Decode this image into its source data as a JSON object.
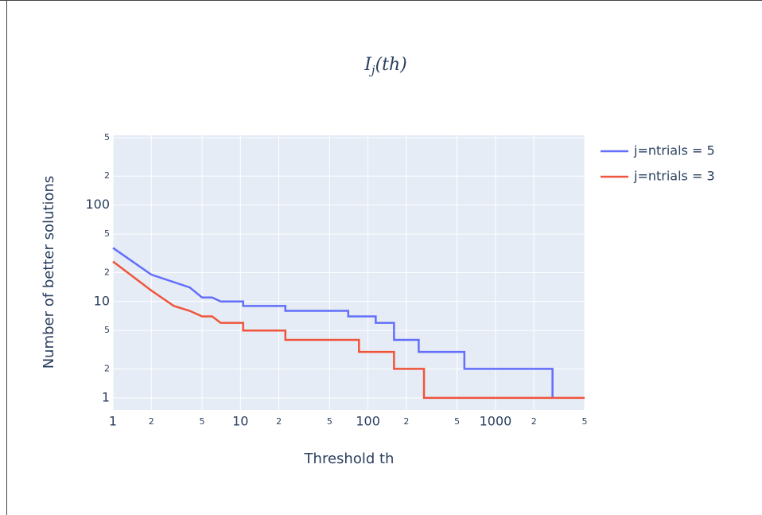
{
  "chart_data": {
    "type": "line",
    "title": {
      "base": "I",
      "sub": "j",
      "args": "(th)"
    },
    "x_label": "Threshold th",
    "y_label": "Number of better solutions",
    "log_x": true,
    "log_y": true,
    "grid": true,
    "legend": "right",
    "xlim": [
      1,
      5000
    ],
    "ylim": [
      0.75,
      530
    ],
    "xticks": [
      1,
      2,
      5,
      10,
      {
        "value": 20,
        "label": "2"
      },
      {
        "value": 50,
        "label": "5"
      },
      100,
      {
        "value": 200,
        "label": "2"
      },
      {
        "value": 500,
        "label": "5"
      },
      1000,
      {
        "value": 2000,
        "label": "2"
      },
      {
        "value": 5000,
        "label": "5"
      }
    ],
    "yticks": [
      1,
      2,
      5,
      10,
      {
        "value": 20,
        "label": "2"
      },
      {
        "value": 50,
        "label": "5"
      },
      100,
      {
        "value": 200,
        "label": "2"
      },
      {
        "value": 500,
        "label": "5"
      }
    ],
    "series": [
      {
        "name": "j=ntrials = 5",
        "color": "#636efa",
        "x": [
          1,
          2,
          4,
          5,
          6,
          7,
          10.5,
          10.5,
          22.5,
          22.5,
          70,
          70,
          115,
          115,
          160,
          160,
          250,
          250,
          570,
          570,
          2800,
          2800
        ],
        "values": [
          36,
          19,
          14,
          11,
          11,
          10,
          10,
          9,
          9,
          8,
          8,
          7,
          7,
          6,
          6,
          4,
          4,
          3,
          3,
          2,
          2,
          1
        ]
      },
      {
        "name": "j=ntrials = 3",
        "color": "#ef553b",
        "x": [
          1,
          2,
          3,
          4,
          5,
          6,
          7,
          10.5,
          10.5,
          22.5,
          22.5,
          85,
          85,
          160,
          160,
          275,
          275,
          5000
        ],
        "values": [
          26,
          13,
          9,
          8,
          7,
          7,
          6,
          6,
          5,
          5,
          4,
          4,
          3,
          3,
          2,
          2,
          1,
          1
        ]
      }
    ]
  }
}
